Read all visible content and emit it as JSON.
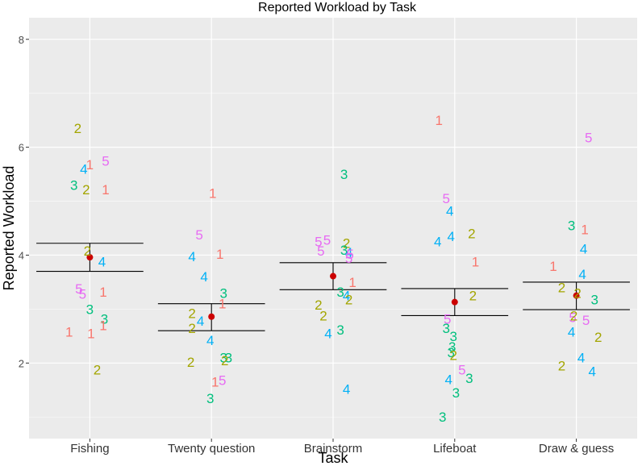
{
  "chart_data": {
    "type": "scatter",
    "title": "Reported Workload by Task",
    "xlabel": "Task",
    "ylabel": "Reported Workload",
    "ylim": [
      0.6,
      8.4
    ],
    "y_ticks": [
      2,
      4,
      6,
      8
    ],
    "categories": [
      "Fishing",
      "Twenty question",
      "Brainstorm",
      "Lifeboat",
      "Draw & guess"
    ],
    "label_colors": {
      "1": "#F8766D",
      "2": "#A3A500",
      "3": "#00BF7D",
      "4": "#00B0F6",
      "5": "#E76BF3"
    },
    "summary": [
      {
        "mean": 3.96,
        "upper": 4.22,
        "lower": 3.7
      },
      {
        "mean": 2.86,
        "upper": 3.1,
        "lower": 2.6
      },
      {
        "mean": 3.61,
        "upper": 3.86,
        "lower": 3.36
      },
      {
        "mean": 3.13,
        "upper": 3.38,
        "lower": 2.88
      },
      {
        "mean": 3.25,
        "upper": 3.5,
        "lower": 2.99
      }
    ],
    "points": [
      {
        "task": "Fishing",
        "label": "2",
        "dx": -0.1,
        "y": 6.35
      },
      {
        "task": "Fishing",
        "label": "4",
        "dx": -0.05,
        "y": 5.6
      },
      {
        "task": "Fishing",
        "label": "1",
        "dx": 0.0,
        "y": 5.68
      },
      {
        "task": "Fishing",
        "label": "5",
        "dx": 0.13,
        "y": 5.75
      },
      {
        "task": "Fishing",
        "label": "3",
        "dx": -0.13,
        "y": 5.3
      },
      {
        "task": "Fishing",
        "label": "2",
        "dx": -0.03,
        "y": 5.22
      },
      {
        "task": "Fishing",
        "label": "1",
        "dx": 0.13,
        "y": 5.22
      },
      {
        "task": "Fishing",
        "label": "2",
        "dx": -0.02,
        "y": 4.08
      },
      {
        "task": "Fishing",
        "label": "4",
        "dx": 0.1,
        "y": 3.88
      },
      {
        "task": "Fishing",
        "label": "5",
        "dx": -0.09,
        "y": 3.38
      },
      {
        "task": "Fishing",
        "label": "5",
        "dx": -0.06,
        "y": 3.28
      },
      {
        "task": "Fishing",
        "label": "1",
        "dx": 0.11,
        "y": 3.32
      },
      {
        "task": "Fishing",
        "label": "3",
        "dx": 0.0,
        "y": 3.0
      },
      {
        "task": "Fishing",
        "label": "3",
        "dx": 0.12,
        "y": 2.82
      },
      {
        "task": "Fishing",
        "label": "1",
        "dx": -0.17,
        "y": 2.58
      },
      {
        "task": "Fishing",
        "label": "1",
        "dx": 0.01,
        "y": 2.55
      },
      {
        "task": "Fishing",
        "label": "1",
        "dx": 0.11,
        "y": 2.7
      },
      {
        "task": "Fishing",
        "label": "2",
        "dx": 0.06,
        "y": 1.88
      },
      {
        "task": "Twenty question",
        "label": "1",
        "dx": 0.01,
        "y": 5.15
      },
      {
        "task": "Twenty question",
        "label": "5",
        "dx": -0.1,
        "y": 4.38
      },
      {
        "task": "Twenty question",
        "label": "4",
        "dx": -0.16,
        "y": 3.98
      },
      {
        "task": "Twenty question",
        "label": "1",
        "dx": 0.07,
        "y": 4.02
      },
      {
        "task": "Twenty question",
        "label": "4",
        "dx": -0.06,
        "y": 3.6
      },
      {
        "task": "Twenty question",
        "label": "3",
        "dx": 0.1,
        "y": 3.3
      },
      {
        "task": "Twenty question",
        "label": "1",
        "dx": 0.09,
        "y": 3.1
      },
      {
        "task": "Twenty question",
        "label": "2",
        "dx": -0.16,
        "y": 2.92
      },
      {
        "task": "Twenty question",
        "label": "4",
        "dx": -0.09,
        "y": 2.78
      },
      {
        "task": "Twenty question",
        "label": "2",
        "dx": -0.16,
        "y": 2.65
      },
      {
        "task": "Twenty question",
        "label": "4",
        "dx": -0.01,
        "y": 2.42
      },
      {
        "task": "Twenty question",
        "label": "3",
        "dx": 0.1,
        "y": 2.1
      },
      {
        "task": "Twenty question",
        "label": "3",
        "dx": 0.14,
        "y": 2.1
      },
      {
        "task": "Twenty question",
        "label": "2",
        "dx": 0.11,
        "y": 2.05
      },
      {
        "task": "Twenty question",
        "label": "2",
        "dx": -0.17,
        "y": 2.02
      },
      {
        "task": "Twenty question",
        "label": "5",
        "dx": 0.09,
        "y": 1.68
      },
      {
        "task": "Twenty question",
        "label": "1",
        "dx": 0.03,
        "y": 1.65
      },
      {
        "task": "Twenty question",
        "label": "3",
        "dx": -0.01,
        "y": 1.35
      },
      {
        "task": "Brainstorm",
        "label": "3",
        "dx": 0.09,
        "y": 5.5
      },
      {
        "task": "Brainstorm",
        "label": "5",
        "dx": -0.12,
        "y": 4.25
      },
      {
        "task": "Brainstorm",
        "label": "5",
        "dx": -0.05,
        "y": 4.28
      },
      {
        "task": "Brainstorm",
        "label": "2",
        "dx": 0.11,
        "y": 4.22
      },
      {
        "task": "Brainstorm",
        "label": "5",
        "dx": -0.1,
        "y": 4.08
      },
      {
        "task": "Brainstorm",
        "label": "3",
        "dx": 0.09,
        "y": 4.1
      },
      {
        "task": "Brainstorm",
        "label": "4",
        "dx": 0.13,
        "y": 4.05
      },
      {
        "task": "Brainstorm",
        "label": "5",
        "dx": 0.14,
        "y": 4.02
      },
      {
        "task": "Brainstorm",
        "label": "5",
        "dx": 0.13,
        "y": 3.95
      },
      {
        "task": "Brainstorm",
        "label": "1",
        "dx": 0.16,
        "y": 3.5
      },
      {
        "task": "Brainstorm",
        "label": "3",
        "dx": 0.06,
        "y": 3.32
      },
      {
        "task": "Brainstorm",
        "label": "4",
        "dx": 0.11,
        "y": 3.25
      },
      {
        "task": "Brainstorm",
        "label": "2",
        "dx": 0.13,
        "y": 3.18
      },
      {
        "task": "Brainstorm",
        "label": "2",
        "dx": -0.12,
        "y": 3.08
      },
      {
        "task": "Brainstorm",
        "label": "2",
        "dx": -0.08,
        "y": 2.88
      },
      {
        "task": "Brainstorm",
        "label": "3",
        "dx": 0.06,
        "y": 2.62
      },
      {
        "task": "Brainstorm",
        "label": "4",
        "dx": -0.04,
        "y": 2.55
      },
      {
        "task": "Brainstorm",
        "label": "4",
        "dx": 0.11,
        "y": 1.52
      },
      {
        "task": "Lifeboat",
        "label": "1",
        "dx": -0.13,
        "y": 6.5
      },
      {
        "task": "Lifeboat",
        "label": "5",
        "dx": -0.07,
        "y": 5.05
      },
      {
        "task": "Lifeboat",
        "label": "4",
        "dx": -0.04,
        "y": 4.82
      },
      {
        "task": "Lifeboat",
        "label": "4",
        "dx": -0.14,
        "y": 4.25
      },
      {
        "task": "Lifeboat",
        "label": "4",
        "dx": -0.03,
        "y": 4.35
      },
      {
        "task": "Lifeboat",
        "label": "2",
        "dx": 0.14,
        "y": 4.4
      },
      {
        "task": "Lifeboat",
        "label": "1",
        "dx": 0.17,
        "y": 3.88
      },
      {
        "task": "Lifeboat",
        "label": "2",
        "dx": 0.15,
        "y": 3.25
      },
      {
        "task": "Lifeboat",
        "label": "5",
        "dx": -0.06,
        "y": 2.82
      },
      {
        "task": "Lifeboat",
        "label": "3",
        "dx": -0.07,
        "y": 2.65
      },
      {
        "task": "Lifeboat",
        "label": "3",
        "dx": -0.01,
        "y": 2.5
      },
      {
        "task": "Lifeboat",
        "label": "3",
        "dx": -0.02,
        "y": 2.3
      },
      {
        "task": "Lifeboat",
        "label": "3",
        "dx": -0.03,
        "y": 2.2
      },
      {
        "task": "Lifeboat",
        "label": "2",
        "dx": -0.01,
        "y": 2.15
      },
      {
        "task": "Lifeboat",
        "label": "5",
        "dx": 0.06,
        "y": 1.88
      },
      {
        "task": "Lifeboat",
        "label": "4",
        "dx": -0.05,
        "y": 1.7
      },
      {
        "task": "Lifeboat",
        "label": "3",
        "dx": 0.12,
        "y": 1.72
      },
      {
        "task": "Lifeboat",
        "label": "3",
        "dx": 0.01,
        "y": 1.45
      },
      {
        "task": "Lifeboat",
        "label": "3",
        "dx": -0.1,
        "y": 1.0
      },
      {
        "task": "Draw & guess",
        "label": "5",
        "dx": 0.1,
        "y": 6.18
      },
      {
        "task": "Draw & guess",
        "label": "3",
        "dx": -0.04,
        "y": 4.55
      },
      {
        "task": "Draw & guess",
        "label": "1",
        "dx": 0.07,
        "y": 4.48
      },
      {
        "task": "Draw & guess",
        "label": "4",
        "dx": 0.06,
        "y": 4.12
      },
      {
        "task": "Draw & guess",
        "label": "1",
        "dx": -0.19,
        "y": 3.8
      },
      {
        "task": "Draw & guess",
        "label": "4",
        "dx": 0.05,
        "y": 3.65
      },
      {
        "task": "Draw & guess",
        "label": "2",
        "dx": -0.12,
        "y": 3.4
      },
      {
        "task": "Draw & guess",
        "label": "2",
        "dx": 0.01,
        "y": 3.3
      },
      {
        "task": "Draw & guess",
        "label": "3",
        "dx": 0.15,
        "y": 3.18
      },
      {
        "task": "Draw & guess",
        "label": "5",
        "dx": -0.03,
        "y": 2.85
      },
      {
        "task": "Draw & guess",
        "label": "2",
        "dx": -0.02,
        "y": 2.88
      },
      {
        "task": "Draw & guess",
        "label": "5",
        "dx": 0.08,
        "y": 2.8
      },
      {
        "task": "Draw & guess",
        "label": "4",
        "dx": -0.04,
        "y": 2.58
      },
      {
        "task": "Draw & guess",
        "label": "2",
        "dx": 0.18,
        "y": 2.48
      },
      {
        "task": "Draw & guess",
        "label": "4",
        "dx": 0.04,
        "y": 2.1
      },
      {
        "task": "Draw & guess",
        "label": "2",
        "dx": -0.12,
        "y": 1.95
      },
      {
        "task": "Draw & guess",
        "label": "4",
        "dx": 0.13,
        "y": 1.85
      }
    ]
  }
}
